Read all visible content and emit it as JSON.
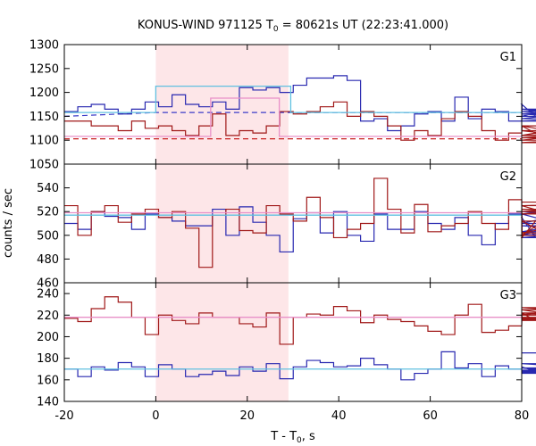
{
  "chart_data": {
    "type": "line",
    "title": "KONUS-WIND 971125 T",
    "title_sub": "0",
    "title_rest": " = 80621s UT (22:23:41.000)",
    "xlabel": "T - T",
    "xlabel_sub": "0",
    "xlabel_rest": ", s",
    "ylabel": "counts / sec",
    "xlim": [
      -20,
      80
    ],
    "x_ticks": [
      "-20",
      "0",
      "20",
      "40",
      "60",
      "80"
    ],
    "highlight_interval": [
      0,
      29
    ],
    "colors": {
      "red_series": "#a01818",
      "blue_series": "#2828b0",
      "red_bg": "#c81e1e",
      "blue_bg": "#3c3cc8",
      "blue_fit": "#60c0e0",
      "pink_fit": "#e890c8",
      "highlight": "#fde6e8"
    },
    "panels": [
      {
        "label": "G1",
        "ylim": [
          1050,
          1300
        ],
        "y_ticks": [
          "1050",
          "1100",
          "1150",
          "1200",
          "1250",
          "1300"
        ],
        "step_start": -20,
        "step_width": 2.944,
        "series": [
          {
            "color": "blue",
            "values": [
              1160,
              1170,
              1175,
              1165,
              1155,
              1165,
              1180,
              1170,
              1195,
              1175,
              1170,
              1180,
              1165,
              1210,
              1205,
              1210,
              1200,
              1215,
              1230,
              1230,
              1235,
              1225,
              1140,
              1145,
              1120,
              1130,
              1155,
              1160,
              1140,
              1190,
              1145,
              1165,
              1160,
              1140,
              1175,
              1150,
              1165,
              1155,
              1160,
              1145,
              1165,
              1155,
              1140,
              1155,
              1160
            ]
          },
          {
            "color": "red",
            "values": [
              1140,
              1140,
              1130,
              1130,
              1120,
              1140,
              1125,
              1130,
              1120,
              1110,
              1130,
              1155,
              1110,
              1120,
              1115,
              1130,
              1160,
              1155,
              1160,
              1170,
              1180,
              1150,
              1160,
              1150,
              1130,
              1100,
              1120,
              1110,
              1145,
              1160,
              1150,
              1120,
              1100,
              1115,
              1130,
              1130,
              1100,
              1110,
              1130,
              1105,
              1105,
              1120,
              1095,
              1110,
              1120
            ]
          }
        ],
        "backgrounds": [
          {
            "color": "blue_bg",
            "x": [
              -20,
              0,
              80
            ],
            "y": [
              1150,
              1158,
              1158
            ]
          },
          {
            "color": "red_bg",
            "x": [
              -20,
              80
            ],
            "y": [
              1103,
              1103
            ]
          }
        ],
        "fits": [
          {
            "color": "blue_fit",
            "x": [
              -20,
              0,
              0,
              29.5,
              29.5,
              80
            ],
            "y": [
              1158,
              1158,
              1213,
              1213,
              1158,
              1158
            ]
          },
          {
            "color": "pink_fit",
            "x": [
              -20,
              12,
              12,
              27,
              27,
              80
            ],
            "y": [
              1108,
              1108,
              1188,
              1188,
              1108,
              1108
            ]
          }
        ]
      },
      {
        "label": "G2",
        "ylim": [
          460,
          560
        ],
        "y_ticks": [
          "460",
          "480",
          "500",
          "520",
          "540"
        ],
        "step_start": -20,
        "step_width": 2.944,
        "series": [
          {
            "color": "blue",
            "values": [
              510,
              505,
              520,
              516,
              515,
              505,
              518,
              515,
              512,
              508,
              508,
              522,
              500,
              524,
              511,
              500,
              486,
              514,
              519,
              502,
              520,
              500,
              495,
              518,
              505,
              505,
              520,
              510,
              505,
              515,
              500,
              492,
              510,
              518,
              515,
              498,
              500,
              510,
              520,
              518,
              500,
              508,
              503,
              520,
              508
            ]
          },
          {
            "color": "red",
            "values": [
              525,
              500,
              520,
              525,
              511,
              518,
              522,
              515,
              520,
              506,
              473,
              517,
              522,
              504,
              502,
              525,
              518,
              512,
              532,
              515,
              498,
              505,
              510,
              548,
              522,
              502,
              526,
              503,
              508,
              510,
              520,
              510,
              505,
              530,
              498,
              512,
              500,
              522,
              520,
              520,
              525,
              502,
              518,
              525,
              528
            ]
          }
        ],
        "backgrounds": [],
        "fits": [
          {
            "color": "blue_fit",
            "x": [
              -20,
              80
            ],
            "y": [
              517,
              517
            ]
          },
          {
            "color": "pink_fit",
            "x": [
              -20,
              80
            ],
            "y": [
              519,
              519
            ]
          }
        ]
      },
      {
        "label": "G3",
        "ylim": [
          140,
          250
        ],
        "y_ticks": [
          "140",
          "160",
          "180",
          "200",
          "220",
          "240"
        ],
        "step_start": -20,
        "step_width": 2.944,
        "series": [
          {
            "color": "blue",
            "values": [
              170,
              163,
              172,
              169,
              176,
              172,
              163,
              174,
              170,
              163,
              165,
              168,
              164,
              172,
              168,
              175,
              161,
              172,
              178,
              176,
              172,
              173,
              180,
              174,
              170,
              160,
              166,
              170,
              186,
              171,
              175,
              163,
              173,
              170,
              172,
              168,
              168,
              171,
              166,
              171,
              169,
              167,
              175,
              168,
              185
            ]
          },
          {
            "color": "red",
            "values": [
              217,
              214,
              226,
              237,
              232,
              218,
              202,
              220,
              215,
              212,
              222,
              218,
              218,
              212,
              209,
              222,
              193,
              218,
              221,
              220,
              228,
              224,
              213,
              220,
              216,
              214,
              210,
              205,
              202,
              220,
              230,
              204,
              206,
              210,
              222,
              215,
              220,
              225,
              217,
              216,
              215,
              222,
              215,
              227,
              218
            ]
          }
        ],
        "backgrounds": [],
        "fits": [
          {
            "color": "blue_fit",
            "x": [
              -20,
              80
            ],
            "y": [
              170,
              170
            ]
          },
          {
            "color": "pink_fit",
            "x": [
              -20,
              80
            ],
            "y": [
              218,
              218
            ]
          }
        ]
      }
    ]
  }
}
